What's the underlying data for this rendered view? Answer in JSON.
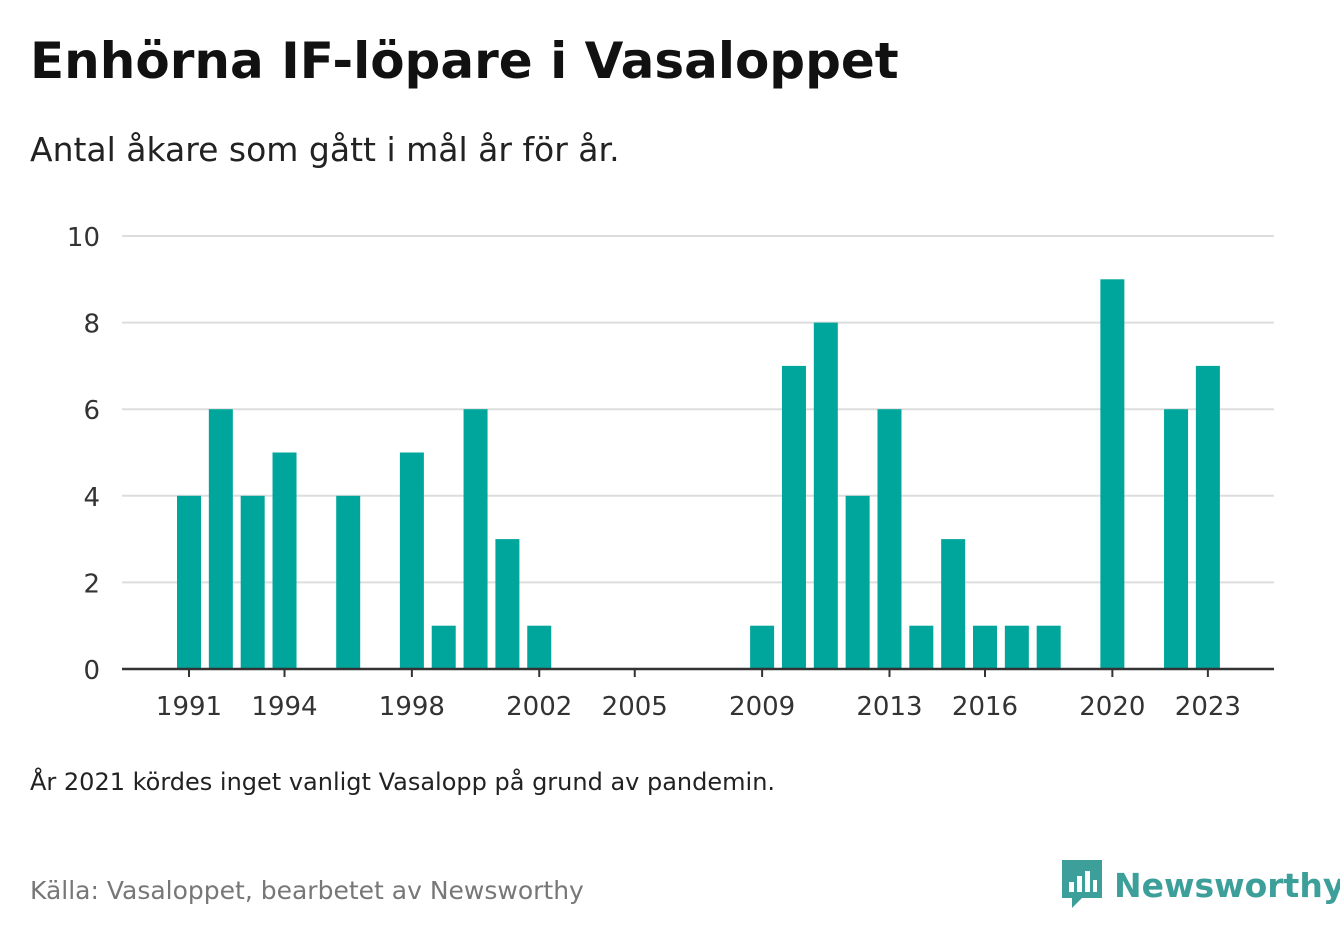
{
  "header": {
    "title": "Enhörna IF-löpare i Vasaloppet",
    "subtitle": "Antal åkare som gått i mål år för år."
  },
  "footer": {
    "note": "År 2021 kördes inget vanligt Vasalopp på grund av pandemin.",
    "source": "Källa: Vasaloppet, bearbetet av Newsworthy",
    "brand": "Newsworthy"
  },
  "colors": {
    "bar": "#00a69c",
    "grid": "#dddddd",
    "axis": "#333333",
    "brand": "#3d9f9a"
  },
  "chart_data": {
    "type": "bar",
    "x": [
      1991,
      1992,
      1993,
      1994,
      1995,
      1996,
      1997,
      1998,
      1999,
      2000,
      2001,
      2002,
      2003,
      2004,
      2005,
      2006,
      2007,
      2008,
      2009,
      2010,
      2011,
      2012,
      2013,
      2014,
      2015,
      2016,
      2017,
      2018,
      2019,
      2020,
      2021,
      2022,
      2023
    ],
    "values": [
      4,
      6,
      4,
      5,
      0,
      4,
      0,
      5,
      1,
      6,
      3,
      1,
      0,
      0,
      0,
      0,
      0,
      0,
      1,
      7,
      8,
      4,
      6,
      1,
      3,
      1,
      1,
      1,
      0,
      9,
      0,
      6,
      7
    ],
    "xticks": [
      "1991",
      "1994",
      "1998",
      "2002",
      "2005",
      "2009",
      "2013",
      "2016",
      "2020",
      "2023"
    ],
    "yticks": [
      "0",
      "2",
      "4",
      "6",
      "8",
      "10"
    ],
    "ylim": [
      0,
      10
    ],
    "grid": true
  }
}
